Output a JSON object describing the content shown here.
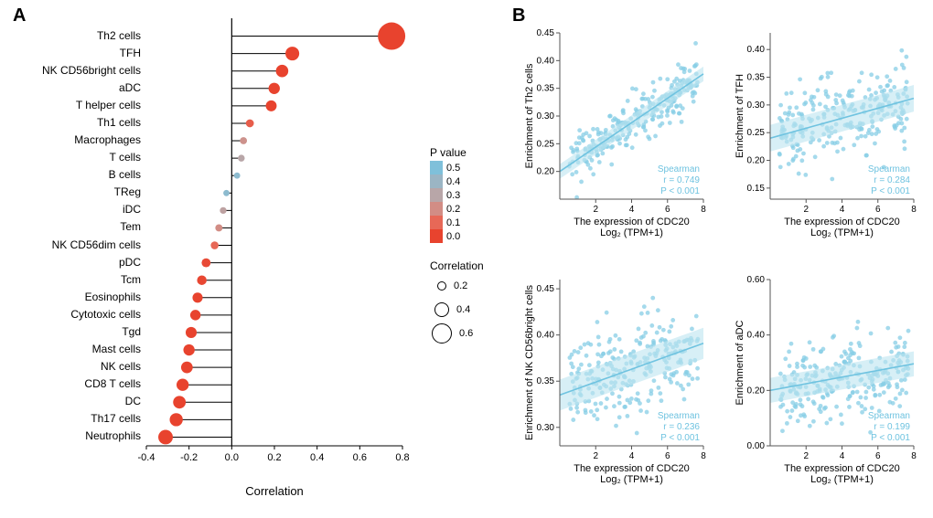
{
  "panelA": {
    "label": "A",
    "x_title": "Correlation",
    "xlim": [
      -0.4,
      0.8
    ],
    "xticks": [
      -0.4,
      -0.2,
      0.0,
      0.2,
      0.4,
      0.6,
      0.8
    ],
    "tick_fontsize": 11,
    "label_fontsize": 12,
    "background_color": "#ffffff",
    "stem_color": "#000000",
    "stem_width": 1,
    "pvalue_colors": {
      "0.0": "#e8432e",
      "0.1": "#e76857",
      "0.2": "#d28d85",
      "0.3": "#b8a6a8",
      "0.4": "#9bb5c4",
      "0.5": "#7fc0da"
    },
    "items": [
      {
        "label": "Th2 cells",
        "corr": 0.749,
        "p": 0.0
      },
      {
        "label": "TFH",
        "corr": 0.284,
        "p": 0.0
      },
      {
        "label": "NK CD56bright cells",
        "corr": 0.236,
        "p": 0.0
      },
      {
        "label": "aDC",
        "corr": 0.199,
        "p": 0.0
      },
      {
        "label": "T helper cells",
        "corr": 0.185,
        "p": 0.0
      },
      {
        "label": "Th1 cells",
        "corr": 0.085,
        "p": 0.07
      },
      {
        "label": "Macrophages",
        "corr": 0.055,
        "p": 0.22
      },
      {
        "label": "T cells",
        "corr": 0.045,
        "p": 0.3
      },
      {
        "label": "B cells",
        "corr": 0.025,
        "p": 0.45
      },
      {
        "label": "TReg",
        "corr": -0.025,
        "p": 0.45
      },
      {
        "label": "iDC",
        "corr": -0.04,
        "p": 0.28
      },
      {
        "label": "Tem",
        "corr": -0.06,
        "p": 0.2
      },
      {
        "label": "NK CD56dim cells",
        "corr": -0.08,
        "p": 0.1
      },
      {
        "label": "pDC",
        "corr": -0.12,
        "p": 0.02
      },
      {
        "label": "Tcm",
        "corr": -0.14,
        "p": 0.01
      },
      {
        "label": "Eosinophils",
        "corr": -0.16,
        "p": 0.0
      },
      {
        "label": "Cytotoxic cells",
        "corr": -0.17,
        "p": 0.0
      },
      {
        "label": "Tgd",
        "corr": -0.19,
        "p": 0.0
      },
      {
        "label": "Mast cells",
        "corr": -0.2,
        "p": 0.0
      },
      {
        "label": "NK cells",
        "corr": -0.21,
        "p": 0.0
      },
      {
        "label": "CD8 T cells",
        "corr": -0.23,
        "p": 0.0
      },
      {
        "label": "DC",
        "corr": -0.245,
        "p": 0.0
      },
      {
        "label": "Th17 cells",
        "corr": -0.26,
        "p": 0.0
      },
      {
        "label": "Neutrophils",
        "corr": -0.31,
        "p": 0.0
      }
    ],
    "legend": {
      "pvalue_title": "P value",
      "pvalue_ticks": [
        "0.5",
        "0.4",
        "0.3",
        "0.2",
        "0.1",
        "0.0"
      ],
      "corr_title": "Correlation",
      "corr_sizes": [
        {
          "label": "0.2",
          "r": 4
        },
        {
          "label": "0.4",
          "r": 7
        },
        {
          "label": "0.6",
          "r": 10
        }
      ]
    }
  },
  "panelB": {
    "label": "B",
    "point_color": "#87cde6",
    "line_color": "#6fc3e0",
    "ribbon_color": "#bde4f0",
    "text_color": "#6fc3e0",
    "n_points": 260,
    "seed": 42,
    "xlabel_line1": "The expression of CDC20",
    "xlabel_line2": "Log₂ (TPM+1)",
    "plots": [
      {
        "ylabel": "Enrichment of Th2 cells",
        "xlim": [
          0,
          8
        ],
        "xticks": [
          2,
          4,
          6,
          8
        ],
        "ylim": [
          0.15,
          0.45
        ],
        "yticks": [
          0.2,
          0.25,
          0.3,
          0.35,
          0.4,
          0.45
        ],
        "r": 0.749,
        "p_text": "P < 0.001",
        "intercept": 0.2,
        "slope": 0.022,
        "noise": 0.022
      },
      {
        "ylabel": "Enrichment of TFH",
        "xlim": [
          0,
          8
        ],
        "xticks": [
          2,
          4,
          6,
          8
        ],
        "ylim": [
          0.13,
          0.43
        ],
        "yticks": [
          0.15,
          0.2,
          0.25,
          0.3,
          0.35,
          0.4
        ],
        "r": 0.284,
        "p_text": "P < 0.001",
        "intercept": 0.24,
        "slope": 0.009,
        "noise": 0.04
      },
      {
        "ylabel": "Enrichment of NK CD56bright cells",
        "xlim": [
          0,
          8
        ],
        "xticks": [
          2,
          4,
          6,
          8
        ],
        "ylim": [
          0.28,
          0.46
        ],
        "yticks": [
          0.3,
          0.35,
          0.4,
          0.45
        ],
        "r": 0.236,
        "p_text": "P < 0.001",
        "intercept": 0.335,
        "slope": 0.007,
        "noise": 0.028
      },
      {
        "ylabel": "Enrichment of aDC",
        "xlim": [
          0,
          8
        ],
        "xticks": [
          2,
          4,
          6,
          8
        ],
        "ylim": [
          0.0,
          0.6
        ],
        "yticks": [
          0.0,
          0.2,
          0.4,
          0.6
        ],
        "r": 0.199,
        "p_text": "P < 0.001",
        "intercept": 0.2,
        "slope": 0.012,
        "noise": 0.075
      }
    ]
  }
}
